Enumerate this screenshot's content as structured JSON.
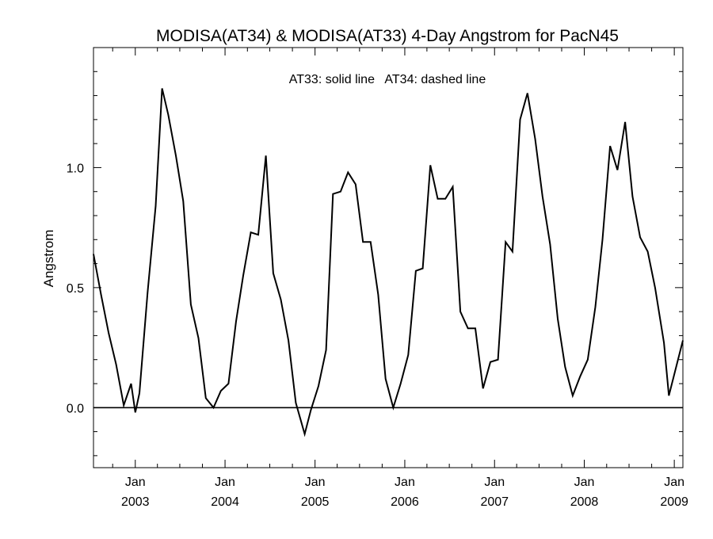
{
  "chart_data": {
    "type": "line",
    "title": "MODISA(AT34) & MODISA(AT33) 4-Day Angstrom for PacN45",
    "annotation": "AT33: solid line   AT34: dashed line",
    "ylabel": "Angstrom",
    "xlabel": "",
    "xlim": [
      "2002-07-15",
      "2009-02-05"
    ],
    "ylim": [
      -0.25,
      1.5
    ],
    "y_ticks": [
      0.0,
      0.5,
      1.0
    ],
    "y_tick_labels": [
      "0.0",
      "0.5",
      "1.0"
    ],
    "x_ticks": [
      {
        "date": "2003-01-01",
        "month": "Jan",
        "year": "2003"
      },
      {
        "date": "2004-01-01",
        "month": "Jan",
        "year": "2004"
      },
      {
        "date": "2005-01-01",
        "month": "Jan",
        "year": "2005"
      },
      {
        "date": "2006-01-01",
        "month": "Jan",
        "year": "2006"
      },
      {
        "date": "2007-01-01",
        "month": "Jan",
        "year": "2007"
      },
      {
        "date": "2008-01-01",
        "month": "Jan",
        "year": "2008"
      },
      {
        "date": "2009-01-01",
        "month": "Jan",
        "year": "2009"
      }
    ],
    "reference_line_y": 0.0,
    "series": [
      {
        "style": "solid",
        "points": [
          [
            "2002-07-15",
            0.64
          ],
          [
            "2002-08-15",
            0.47
          ],
          [
            "2002-09-15",
            0.31
          ],
          [
            "2002-10-15",
            0.18
          ],
          [
            "2002-11-15",
            0.01
          ],
          [
            "2002-12-15",
            0.1
          ],
          [
            "2003-01-01",
            -0.02
          ],
          [
            "2003-01-18",
            0.06
          ],
          [
            "2003-02-20",
            0.48
          ],
          [
            "2003-03-25",
            0.84
          ],
          [
            "2003-04-20",
            1.33
          ],
          [
            "2003-05-15",
            1.22
          ],
          [
            "2003-06-15",
            1.05
          ],
          [
            "2003-07-15",
            0.86
          ],
          [
            "2003-08-15",
            0.43
          ],
          [
            "2003-09-15",
            0.29
          ],
          [
            "2003-10-15",
            0.04
          ],
          [
            "2003-11-15",
            0.0
          ],
          [
            "2003-12-15",
            0.07
          ],
          [
            "2004-01-15",
            0.1
          ],
          [
            "2004-02-15",
            0.36
          ],
          [
            "2004-03-15",
            0.55
          ],
          [
            "2004-04-15",
            0.73
          ],
          [
            "2004-05-15",
            0.72
          ],
          [
            "2004-06-15",
            1.05
          ],
          [
            "2004-07-15",
            0.56
          ],
          [
            "2004-08-15",
            0.45
          ],
          [
            "2004-09-15",
            0.28
          ],
          [
            "2004-10-15",
            0.02
          ],
          [
            "2004-11-20",
            -0.11
          ],
          [
            "2004-12-15",
            -0.01
          ],
          [
            "2005-01-15",
            0.09
          ],
          [
            "2005-02-15",
            0.24
          ],
          [
            "2005-03-15",
            0.89
          ],
          [
            "2005-04-15",
            0.9
          ],
          [
            "2005-05-15",
            0.98
          ],
          [
            "2005-06-15",
            0.93
          ],
          [
            "2005-07-15",
            0.69
          ],
          [
            "2005-08-15",
            0.69
          ],
          [
            "2005-09-15",
            0.47
          ],
          [
            "2005-10-15",
            0.12
          ],
          [
            "2005-11-15",
            0.0
          ],
          [
            "2005-12-15",
            0.1
          ],
          [
            "2006-01-15",
            0.22
          ],
          [
            "2006-02-15",
            0.57
          ],
          [
            "2006-03-15",
            0.58
          ],
          [
            "2006-04-15",
            1.01
          ],
          [
            "2006-05-15",
            0.87
          ],
          [
            "2006-06-15",
            0.87
          ],
          [
            "2006-07-15",
            0.92
          ],
          [
            "2006-08-15",
            0.4
          ],
          [
            "2006-09-15",
            0.33
          ],
          [
            "2006-10-15",
            0.33
          ],
          [
            "2006-11-15",
            0.08
          ],
          [
            "2006-12-15",
            0.19
          ],
          [
            "2007-01-15",
            0.2
          ],
          [
            "2007-02-15",
            0.69
          ],
          [
            "2007-03-15",
            0.65
          ],
          [
            "2007-04-15",
            1.2
          ],
          [
            "2007-05-15",
            1.31
          ],
          [
            "2007-06-15",
            1.12
          ],
          [
            "2007-07-15",
            0.88
          ],
          [
            "2007-08-15",
            0.68
          ],
          [
            "2007-09-15",
            0.37
          ],
          [
            "2007-10-15",
            0.17
          ],
          [
            "2007-11-15",
            0.05
          ],
          [
            "2007-12-15",
            0.13
          ],
          [
            "2008-01-15",
            0.2
          ],
          [
            "2008-02-15",
            0.42
          ],
          [
            "2008-03-15",
            0.7
          ],
          [
            "2008-04-15",
            1.09
          ],
          [
            "2008-05-15",
            0.99
          ],
          [
            "2008-06-15",
            1.19
          ],
          [
            "2008-07-15",
            0.88
          ],
          [
            "2008-08-15",
            0.71
          ],
          [
            "2008-09-15",
            0.65
          ],
          [
            "2008-10-15",
            0.5
          ],
          [
            "2008-11-20",
            0.27
          ],
          [
            "2008-12-10",
            0.05
          ],
          [
            "2009-02-05",
            0.28
          ]
        ]
      }
    ]
  }
}
